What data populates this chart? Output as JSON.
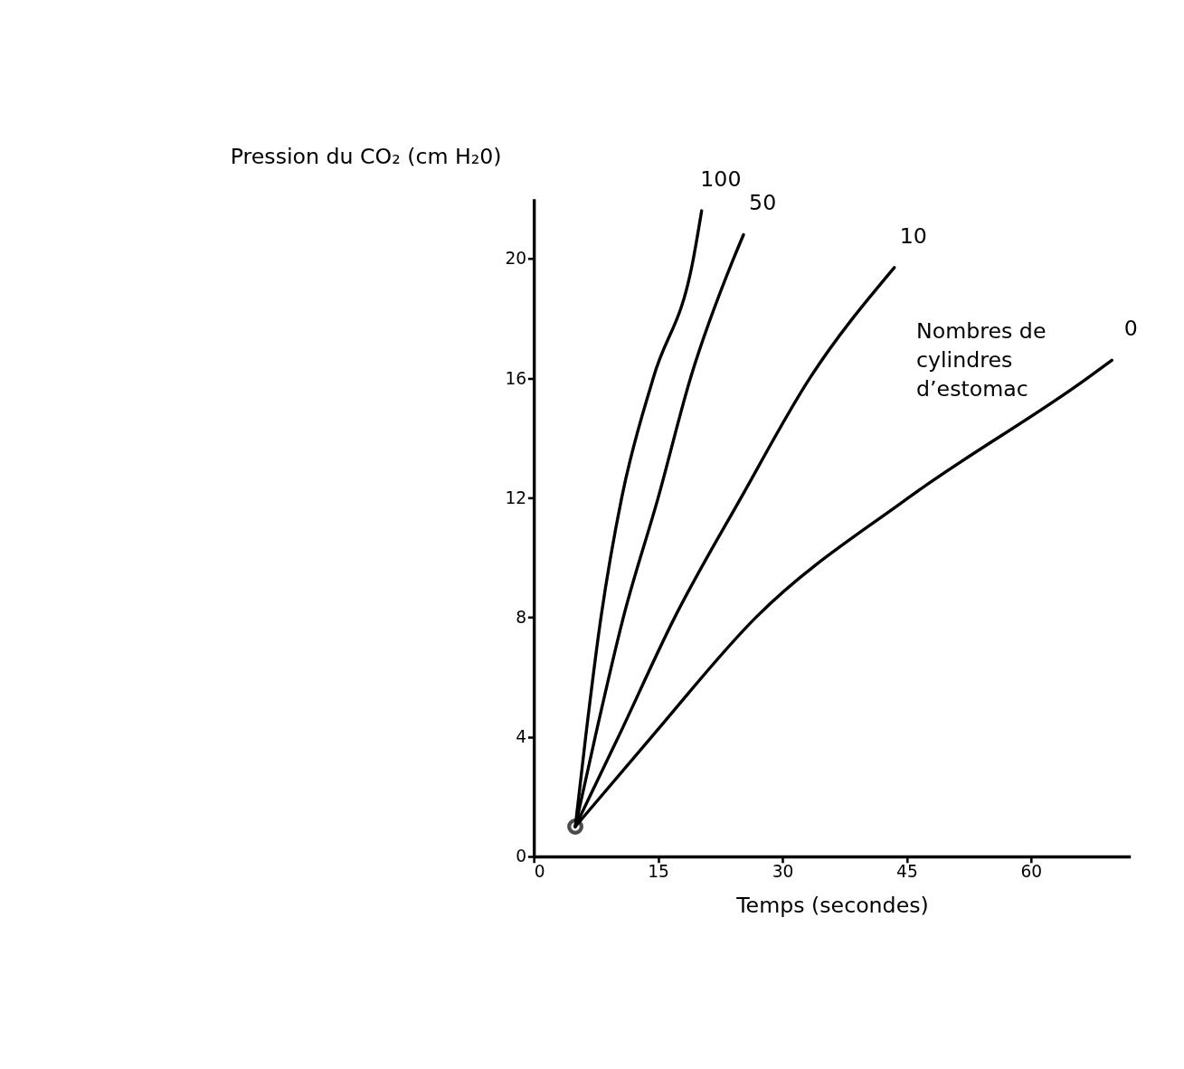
{
  "chart_data": {
    "type": "line",
    "xlabel": "Temps (secondes)",
    "ylabel": "Pression du CO₂ (cm H₂0)",
    "legend_title": "Nombres de cylindres d’estomac",
    "xlim": [
      0,
      72
    ],
    "ylim": [
      0,
      22
    ],
    "xticks": [
      0,
      15,
      30,
      45,
      60
    ],
    "yticks": [
      0,
      4,
      8,
      12,
      16,
      20
    ],
    "grid": false,
    "line_style": "solid",
    "series": [
      {
        "name": "100",
        "color": "#000000",
        "x": [
          5,
          6.25,
          8.1,
          10.6,
          14.4,
          19.25,
          20.25
        ],
        "values": [
          1,
          4,
          8,
          12,
          16,
          20,
          21.6
        ]
      },
      {
        "name": "50",
        "color": "#000000",
        "x": [
          5,
          7.4,
          10.8,
          15,
          18.9,
          24.1,
          25.3
        ],
        "values": [
          1,
          4,
          8,
          12,
          16,
          20,
          20.8
        ]
      },
      {
        "name": "10",
        "color": "#000000",
        "x": [
          5,
          10.2,
          17,
          25,
          33.3,
          43.5
        ],
        "values": [
          1,
          4,
          8,
          12,
          16,
          19.7
        ]
      },
      {
        "name": "0",
        "color": "#000000",
        "x": [
          5,
          14.2,
          26.8,
          45.2,
          66.8,
          69.75
        ],
        "values": [
          1,
          4,
          8,
          12,
          16,
          16.6
        ]
      },
      {
        "type": "scatter",
        "marker": "circle",
        "color": "#000000",
        "x": [
          5
        ],
        "values": [
          1
        ]
      }
    ]
  }
}
